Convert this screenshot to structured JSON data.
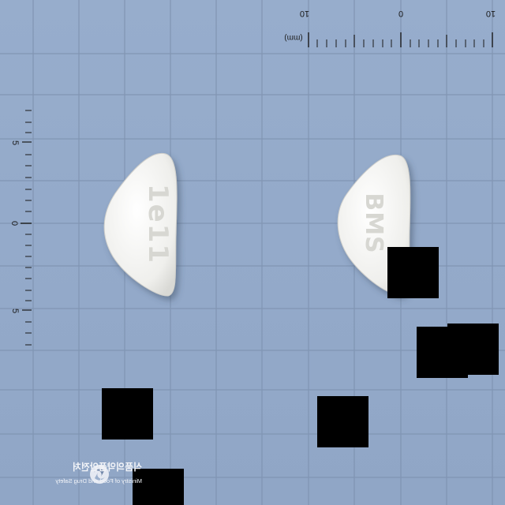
{
  "ruler": {
    "unit_label": "(mm)",
    "top_labels": [
      "10",
      "0",
      "10"
    ],
    "left_labels": [
      "5",
      "0",
      "5"
    ]
  },
  "tablet_front": {
    "imprint": "1e11"
  },
  "tablet_back": {
    "imprint": "BMS"
  },
  "watermark": {
    "korean": "식품의약품안전처",
    "english": "Ministry of Food and Drug Safety"
  },
  "colors": {
    "background": "#93a9c9",
    "grid": "#7f93b1",
    "tablet": "#f1f1ee",
    "redaction": "#000000"
  }
}
